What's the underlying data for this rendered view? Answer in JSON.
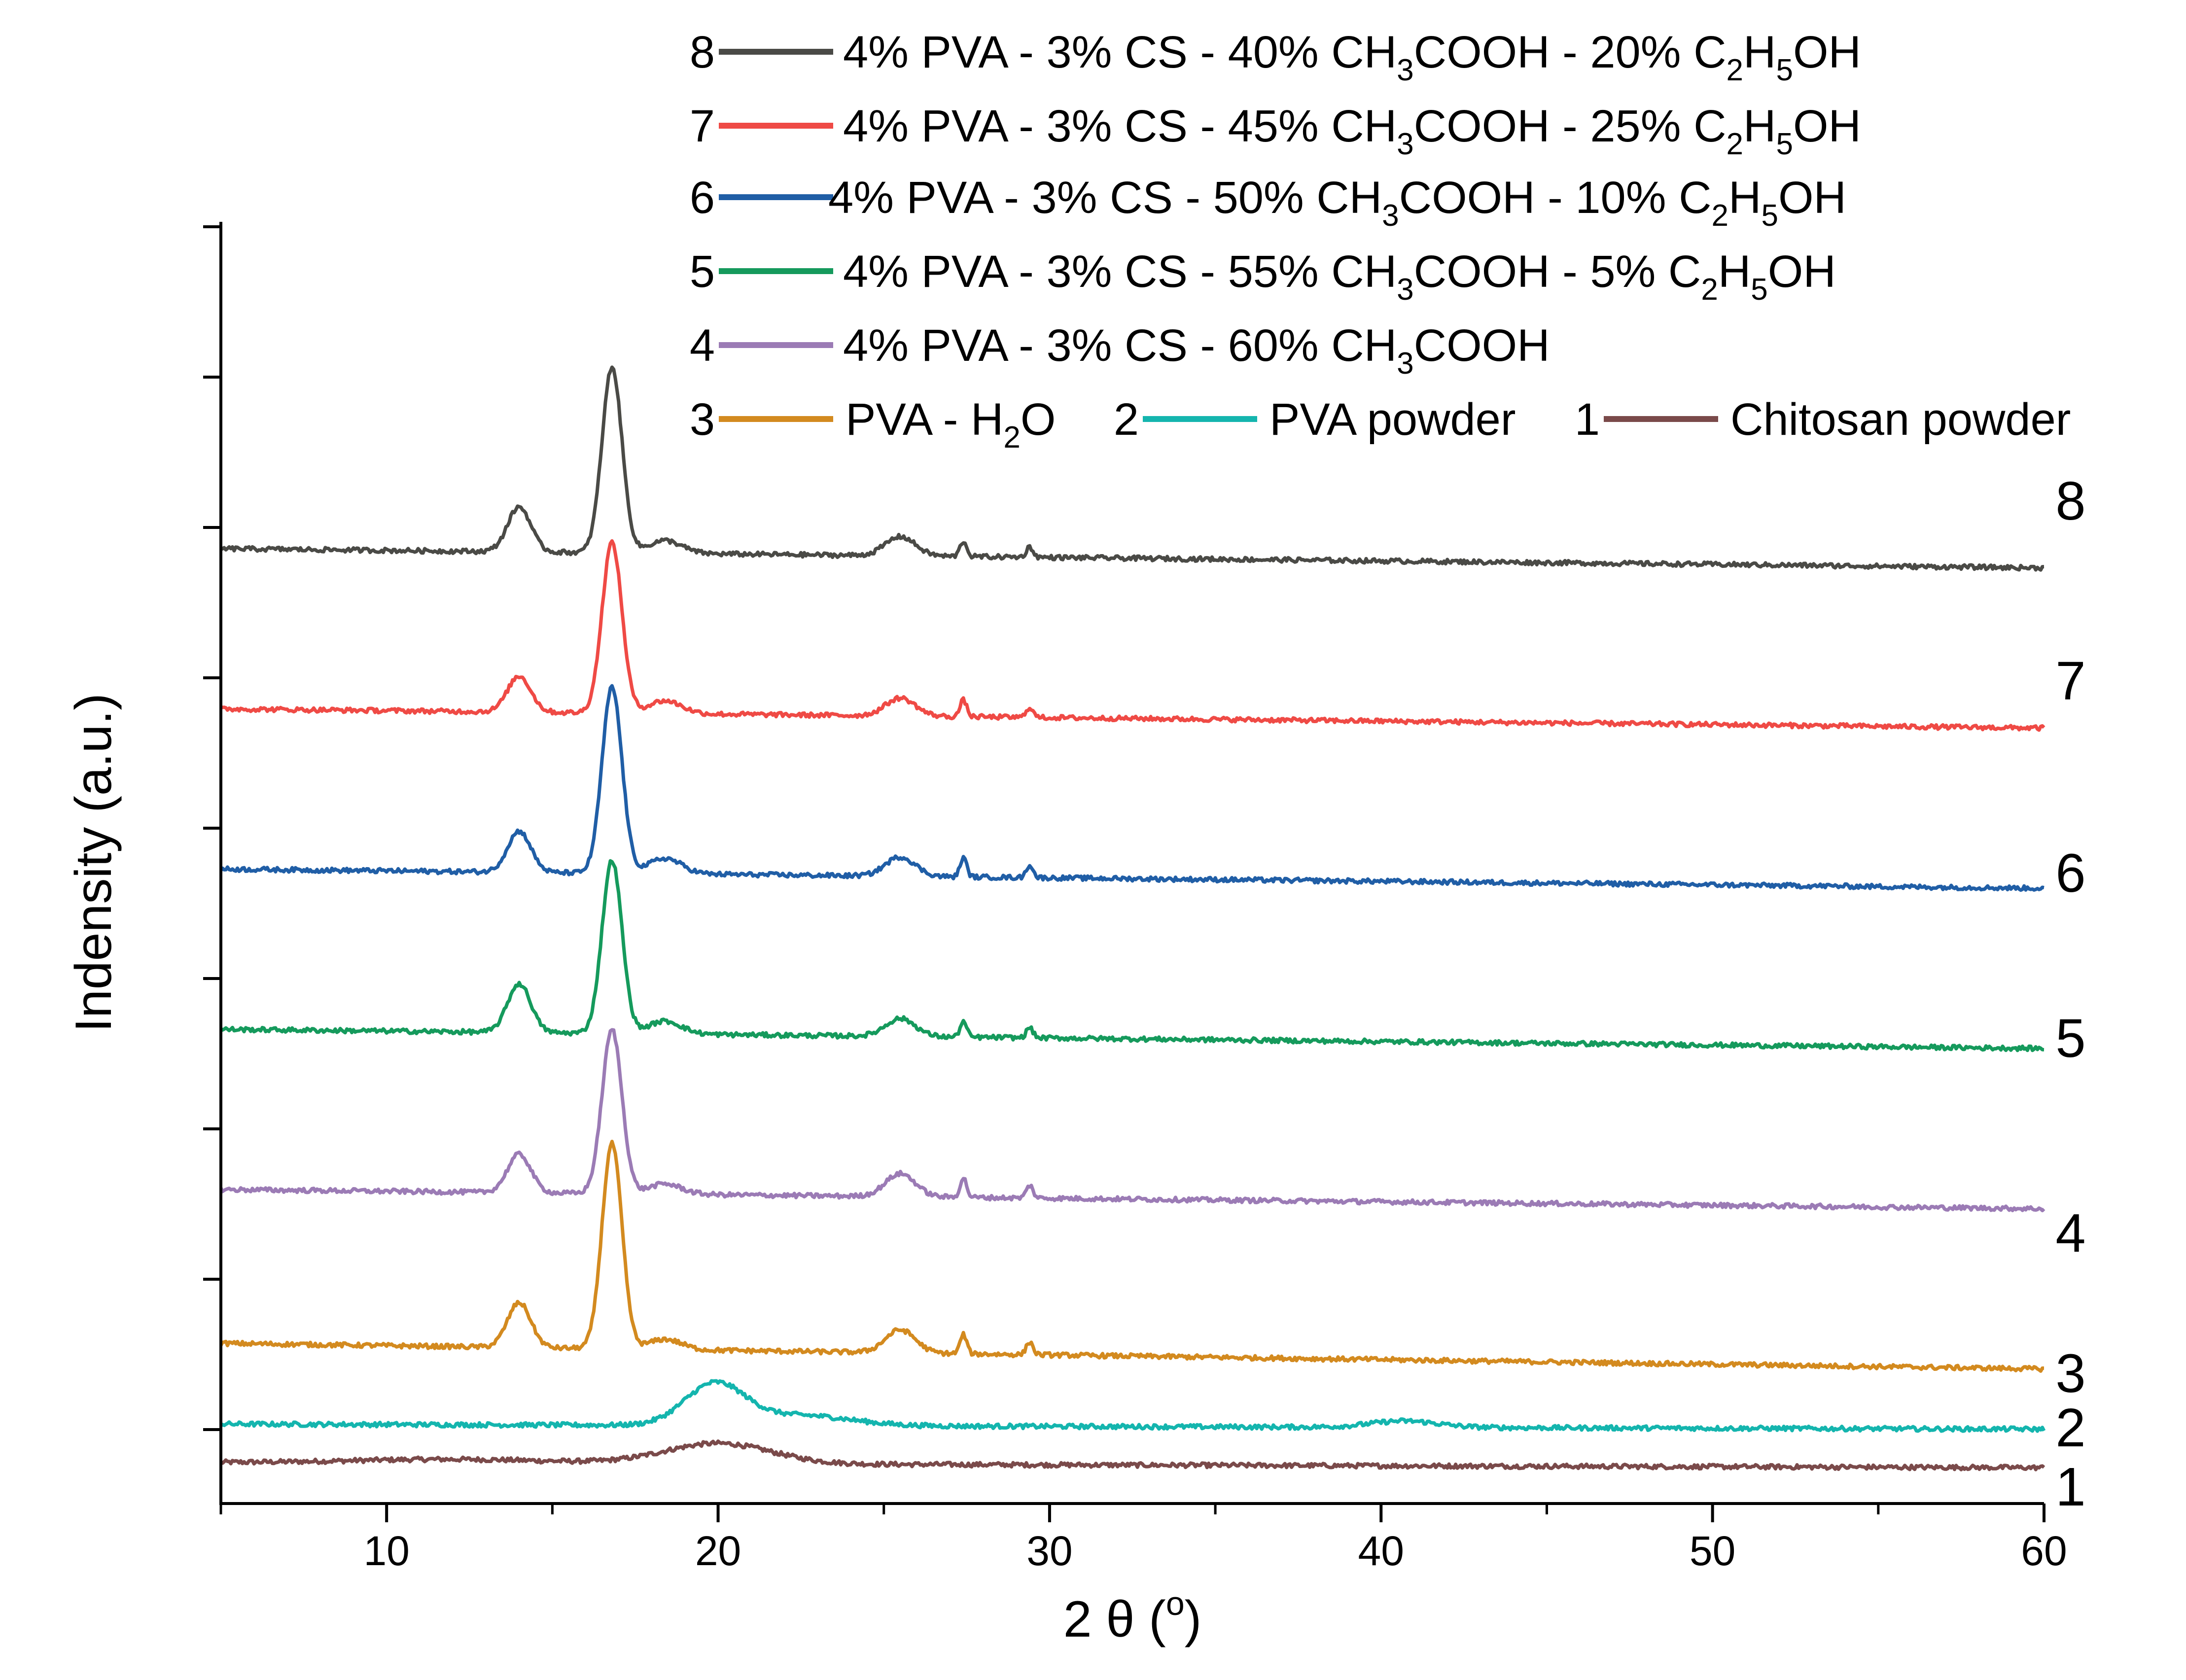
{
  "colors": {
    "s1": "#7a4a4a",
    "s2": "#14b5ae",
    "s3": "#d38a1f",
    "s4": "#9b7bb5",
    "s5": "#159a5c",
    "s6": "#205ea6",
    "s7": "#ef4a45",
    "s8": "#4a4a46",
    "axis": "#000000"
  },
  "chart_data": {
    "type": "line",
    "title": "",
    "xlabel": "2 θ (o)",
    "xlabel_parts": {
      "prefix": "2 θ (",
      "sup": "o",
      "suffix": ")"
    },
    "ylabel": "Indensity (a.u.)",
    "xlim": [
      5,
      60
    ],
    "ylim": [
      0,
      10
    ],
    "x_ticks": [
      10,
      20,
      30,
      40,
      50,
      60
    ],
    "x_tick_labels": [
      "10",
      "20",
      "30",
      "40",
      "50",
      "60"
    ],
    "y_tick_labels_visible": false,
    "legend": [
      {
        "id": "8",
        "number": "8",
        "parts": [
          {
            "t": "4% PVA - 3% CS - 40% CH"
          },
          {
            "t": "3",
            "sub": true
          },
          {
            "t": "COOH - 20% C"
          },
          {
            "t": "2",
            "sub": true
          },
          {
            "t": "H"
          },
          {
            "t": "5",
            "sub": true
          },
          {
            "t": "OH"
          }
        ],
        "text": "4% PVA - 3% CS - 40% CH3COOH - 20% C2H5OH"
      },
      {
        "id": "7",
        "number": "7",
        "parts": [
          {
            "t": "4% PVA - 3% CS - 45% CH"
          },
          {
            "t": "3",
            "sub": true
          },
          {
            "t": "COOH - 25% C"
          },
          {
            "t": "2",
            "sub": true
          },
          {
            "t": "H"
          },
          {
            "t": "5",
            "sub": true
          },
          {
            "t": "OH"
          }
        ],
        "text": "4% PVA - 3% CS - 45% CH3COOH - 25% C2H5OH"
      },
      {
        "id": "6",
        "number": "6",
        "parts": [
          {
            "t": "4% PVA - 3% CS - 50% CH"
          },
          {
            "t": "3",
            "sub": true
          },
          {
            "t": "COOH - 10% C"
          },
          {
            "t": "2",
            "sub": true
          },
          {
            "t": "H"
          },
          {
            "t": "5",
            "sub": true
          },
          {
            "t": "OH"
          }
        ],
        "text": "4% PVA - 3% CS - 50% CH3COOH - 10% C2H5OH"
      },
      {
        "id": "5",
        "number": "5",
        "parts": [
          {
            "t": "4% PVA - 3% CS - 55% CH"
          },
          {
            "t": "3",
            "sub": true
          },
          {
            "t": "COOH - 5% C"
          },
          {
            "t": "2",
            "sub": true
          },
          {
            "t": "H"
          },
          {
            "t": "5",
            "sub": true
          },
          {
            "t": "OH"
          }
        ],
        "text": "4% PVA - 3% CS - 55% CH3COOH - 5% C2H5OH"
      },
      {
        "id": "4",
        "number": "4",
        "parts": [
          {
            "t": "4% PVA - 3% CS - 60% CH"
          },
          {
            "t": "3",
            "sub": true
          },
          {
            "t": "COOH"
          }
        ],
        "text": "4% PVA - 3% CS - 60% CH3COOH"
      },
      {
        "id": "3",
        "number": "3",
        "parts": [
          {
            "t": "PVA - H"
          },
          {
            "t": "2",
            "sub": true
          },
          {
            "t": "O"
          }
        ],
        "text": "PVA - H2O"
      },
      {
        "id": "2",
        "number": "2",
        "parts": [
          {
            "t": "PVA powder"
          }
        ],
        "text": "PVA powder"
      },
      {
        "id": "1",
        "number": "1",
        "parts": [
          {
            "t": "Chitosan powder"
          }
        ],
        "text": "Chitosan powder"
      }
    ],
    "series": [
      {
        "id": "1",
        "name": "Chitosan powder",
        "end_label": "1",
        "baseline_start": 0.32,
        "baseline_end": 0.28,
        "peaks": [
          [
            20.0,
            0.16,
            1.6
          ],
          [
            12.0,
            0.03,
            3.0
          ]
        ]
      },
      {
        "id": "2",
        "name": "PVA powder",
        "end_label": "2",
        "baseline_start": 0.62,
        "baseline_end": 0.58,
        "peaks": [
          [
            19.9,
            0.32,
            0.9
          ],
          [
            22.5,
            0.08,
            1.5
          ],
          [
            40.7,
            0.05,
            1.0
          ]
        ]
      },
      {
        "id": "3",
        "name": "PVA - H2O",
        "end_label": "3",
        "baseline_start": 1.25,
        "baseline_end": 1.05,
        "peaks": [
          [
            14.0,
            0.35,
            0.35
          ],
          [
            16.8,
            1.6,
            0.3
          ],
          [
            18.4,
            0.08,
            0.5
          ],
          [
            25.5,
            0.18,
            0.45
          ],
          [
            27.4,
            0.15,
            0.1
          ],
          [
            29.4,
            0.1,
            0.1
          ]
        ]
      },
      {
        "id": "4",
        "name": "4% PVA - 3% CS - 60% CH3COOH",
        "end_label": "4",
        "baseline_start": 2.45,
        "baseline_end": 2.3,
        "peaks": [
          [
            14.0,
            0.3,
            0.35
          ],
          [
            16.8,
            1.28,
            0.3
          ],
          [
            18.4,
            0.08,
            0.5
          ],
          [
            25.5,
            0.18,
            0.45
          ],
          [
            27.4,
            0.15,
            0.1
          ],
          [
            29.4,
            0.1,
            0.1
          ]
        ]
      },
      {
        "id": "5",
        "name": "4% PVA - 3% CS - 55% CH3COOH - 5% C2H5OH",
        "end_label": "5",
        "baseline_start": 3.7,
        "baseline_end": 3.55,
        "peaks": [
          [
            14.0,
            0.38,
            0.35
          ],
          [
            16.8,
            1.35,
            0.3
          ],
          [
            18.4,
            0.1,
            0.5
          ],
          [
            25.5,
            0.14,
            0.45
          ],
          [
            27.4,
            0.12,
            0.1
          ],
          [
            29.4,
            0.08,
            0.1
          ]
        ]
      },
      {
        "id": "6",
        "name": "4% PVA - 3% CS - 50% CH3COOH - 10% C2H5OH",
        "end_label": "6",
        "baseline_start": 4.95,
        "baseline_end": 4.8,
        "peaks": [
          [
            14.0,
            0.32,
            0.35
          ],
          [
            16.8,
            1.45,
            0.3
          ],
          [
            18.4,
            0.12,
            0.5
          ],
          [
            25.5,
            0.15,
            0.45
          ],
          [
            27.4,
            0.15,
            0.1
          ],
          [
            29.4,
            0.1,
            0.1
          ]
        ]
      },
      {
        "id": "7",
        "name": "4% PVA - 3% CS - 45% CH3COOH - 25% C2H5OH",
        "end_label": "7",
        "baseline_start": 6.2,
        "baseline_end": 6.05,
        "peaks": [
          [
            14.0,
            0.28,
            0.35
          ],
          [
            16.8,
            1.33,
            0.3
          ],
          [
            18.4,
            0.1,
            0.5
          ],
          [
            25.5,
            0.14,
            0.45
          ],
          [
            27.4,
            0.13,
            0.1
          ],
          [
            29.4,
            0.08,
            0.1
          ]
        ]
      },
      {
        "id": "8",
        "name": "4% PVA - 3% CS - 40% CH3COOH - 20% C2H5OH",
        "end_label": "8",
        "baseline_start": 7.45,
        "baseline_end": 7.3,
        "peaks": [
          [
            14.0,
            0.35,
            0.35
          ],
          [
            16.8,
            1.45,
            0.3
          ],
          [
            18.4,
            0.1,
            0.5
          ],
          [
            25.5,
            0.15,
            0.45
          ],
          [
            27.4,
            0.12,
            0.1
          ],
          [
            29.4,
            0.08,
            0.1
          ]
        ]
      }
    ],
    "grid": false,
    "legend_position": "top"
  }
}
